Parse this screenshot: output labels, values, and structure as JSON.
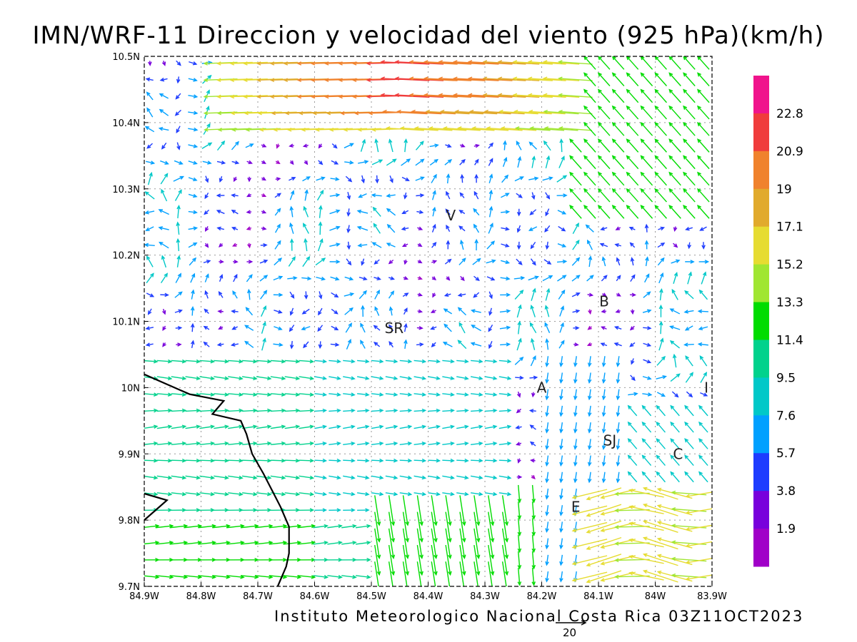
{
  "chart_data": {
    "type": "vector_field",
    "title": "IMN/WRF-11 Direccion y velocidad del viento (925 hPa)(km/h)",
    "x_ticks": [
      "84.9W",
      "84.8W",
      "84.7W",
      "84.6W",
      "84.5W",
      "84.4W",
      "84.3W",
      "84.2W",
      "84.1W",
      "84W",
      "83.9W"
    ],
    "y_ticks": [
      "10.5N",
      "10.4N",
      "10.3N",
      "10.2N",
      "10.1N",
      "10N",
      "9.9N",
      "9.8N",
      "9.7N"
    ],
    "xlim": [
      -84.9,
      -83.9
    ],
    "ylim": [
      9.7,
      10.5
    ],
    "grid": true,
    "grid_style": "dotted",
    "colorbar": {
      "levels": [
        "22.8",
        "20.9",
        "19",
        "17.1",
        "15.2",
        "13.3",
        "11.4",
        "9.5",
        "7.6",
        "5.7",
        "3.8",
        "1.9"
      ],
      "colors": [
        "#f0148c",
        "#f03c3c",
        "#f0822d",
        "#e1aa2d",
        "#e6dc32",
        "#a0e632",
        "#00dc00",
        "#00d28c",
        "#00c8c8",
        "#00a0ff",
        "#1e3cff",
        "#7800dc",
        "#a000c8"
      ]
    },
    "place_labels": [
      {
        "text": "V",
        "lon": -84.36,
        "lat": 10.26
      },
      {
        "text": "B",
        "lon": -84.09,
        "lat": 10.13
      },
      {
        "text": "SR",
        "lon": -84.46,
        "lat": 10.09
      },
      {
        "text": "A",
        "lon": -84.2,
        "lat": 10.0
      },
      {
        "text": "I",
        "lon": -83.91,
        "lat": 10.0
      },
      {
        "text": "SJ",
        "lon": -84.08,
        "lat": 9.92
      },
      {
        "text": "C",
        "lon": -83.96,
        "lat": 9.9
      },
      {
        "text": "E",
        "lon": -84.14,
        "lat": 9.82
      }
    ],
    "coastline": [
      [
        -84.9,
        10.02
      ],
      [
        -84.82,
        9.99
      ],
      [
        -84.76,
        9.98
      ],
      [
        -84.78,
        9.96
      ],
      [
        -84.73,
        9.95
      ],
      [
        -84.72,
        9.93
      ],
      [
        -84.71,
        9.9
      ],
      [
        -84.69,
        9.87
      ],
      [
        -84.66,
        9.82
      ],
      [
        -84.645,
        9.79
      ],
      [
        -84.645,
        9.75
      ],
      [
        -84.65,
        9.73
      ],
      [
        -84.665,
        9.7
      ]
    ],
    "coastline2": [
      [
        -84.9,
        9.8
      ],
      [
        -84.86,
        9.83
      ],
      [
        -84.9,
        9.84
      ]
    ],
    "reference_vector": {
      "magnitude": 20,
      "label": "20"
    },
    "source_label": "Instituto Meteorologico Nacional Costa Rica 03Z11OCT2023"
  }
}
